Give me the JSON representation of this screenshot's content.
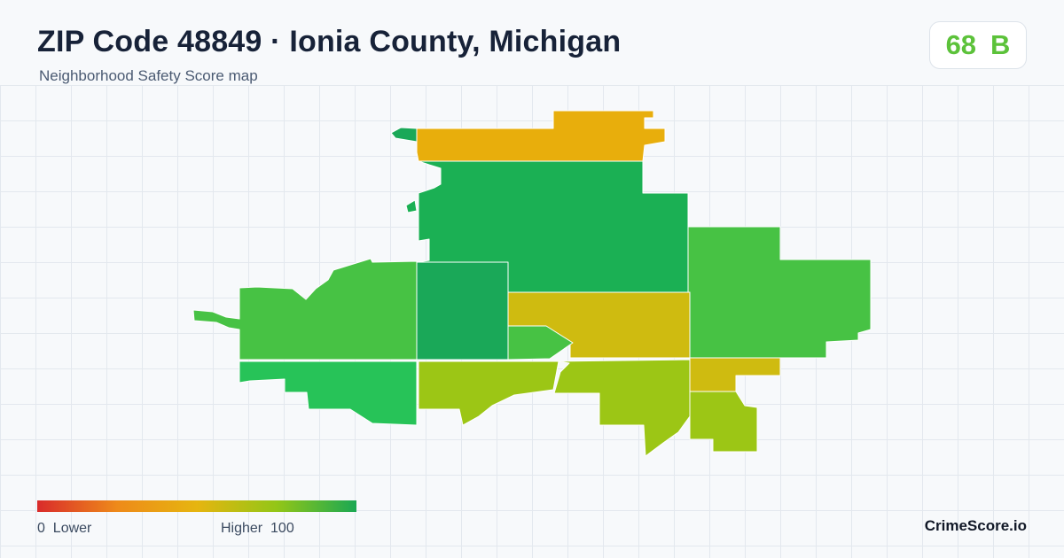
{
  "header": {
    "title": "ZIP Code 48849 · Ionia County, Michigan",
    "subtitle": "Neighborhood Safety Score map"
  },
  "score": {
    "value": "68",
    "grade": "B",
    "color": "#5cc23a"
  },
  "legend": {
    "min_label": "0",
    "low_label": "Lower",
    "high_label": "Higher",
    "max_label": "100",
    "colors": [
      "#d92b2b",
      "#ee8a1a",
      "#e6b510",
      "#93c617",
      "#1aa853"
    ]
  },
  "brand": "CrimeScore.io",
  "map": {
    "regions": [
      {
        "id": "north-strip",
        "color": "#e8ae0c"
      },
      {
        "id": "northwest-nub",
        "color": "#1aa858"
      },
      {
        "id": "central-north",
        "color": "#1bb054"
      },
      {
        "id": "central-west",
        "color": "#1aa858"
      },
      {
        "id": "west",
        "color": "#47c244"
      },
      {
        "id": "southwest",
        "color": "#27c358"
      },
      {
        "id": "east",
        "color": "#47c244"
      },
      {
        "id": "center-block",
        "color": "#cfbb10"
      },
      {
        "id": "center-arrow",
        "color": "#47c244"
      },
      {
        "id": "south-center-left",
        "color": "#9cc615"
      },
      {
        "id": "south-center-right",
        "color": "#9cc615"
      },
      {
        "id": "southeast-small",
        "color": "#cfbb10"
      },
      {
        "id": "southeast-lower",
        "color": "#9cc615"
      }
    ]
  }
}
